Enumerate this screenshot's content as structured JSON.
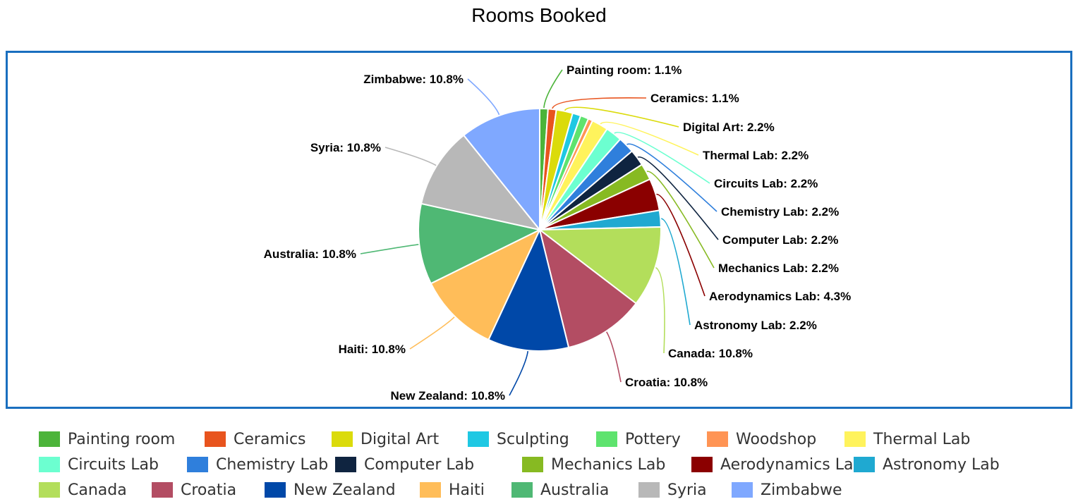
{
  "chart_data": {
    "type": "pie",
    "title": "Rooms Booked",
    "slices": [
      {
        "label": "Painting room",
        "pct": 1.1,
        "color": "#4cb43a",
        "display": "Painting room: 1.1%"
      },
      {
        "label": "Ceramics",
        "pct": 1.1,
        "color": "#e8541e",
        "display": "Ceramics: 1.1%"
      },
      {
        "label": "Digital Art",
        "pct": 2.2,
        "color": "#dbdb0b",
        "display": "Digital Art: 2.2%"
      },
      {
        "label": "Sculpting",
        "pct": 1.1,
        "color": "#1fc8e3",
        "display": ""
      },
      {
        "label": "Pottery",
        "pct": 1.1,
        "color": "#5ee36e",
        "display": ""
      },
      {
        "label": "Woodshop",
        "pct": 0.6,
        "color": "#ff9454",
        "display": ""
      },
      {
        "label": "Thermal Lab",
        "pct": 2.2,
        "color": "#fff35c",
        "display": "Thermal Lab: 2.2%"
      },
      {
        "label": "Circuits Lab",
        "pct": 2.2,
        "color": "#6cffd0",
        "display": "Circuits Lab: 2.2%"
      },
      {
        "label": "Chemistry Lab",
        "pct": 2.2,
        "color": "#2f7fdc",
        "display": "Chemistry Lab: 2.2%"
      },
      {
        "label": "Computer Lab",
        "pct": 2.2,
        "color": "#0f2440",
        "display": "Computer Lab: 2.2%"
      },
      {
        "label": "Mechanics Lab",
        "pct": 2.2,
        "color": "#87ba22",
        "display": "Mechanics Lab: 2.2%"
      },
      {
        "label": "Aerodynamics Lab",
        "pct": 4.3,
        "color": "#8b0000",
        "display": "Aerodynamics Lab: 4.3%"
      },
      {
        "label": "Astronomy Lab",
        "pct": 2.2,
        "color": "#1fa9d1",
        "display": "Astronomy Lab: 2.2%"
      },
      {
        "label": "Canada",
        "pct": 10.8,
        "color": "#b3de5b",
        "display": "Canada: 10.8%"
      },
      {
        "label": "Croatia",
        "pct": 10.8,
        "color": "#b34d63",
        "display": "Croatia: 10.8%"
      },
      {
        "label": "New Zealand",
        "pct": 10.8,
        "color": "#0048a8",
        "display": "New Zealand: 10.8%"
      },
      {
        "label": "Haiti",
        "pct": 10.8,
        "color": "#ffbd59",
        "display": "Haiti: 10.8%"
      },
      {
        "label": "Australia",
        "pct": 10.8,
        "color": "#4fb874",
        "display": "Australia: 10.8%"
      },
      {
        "label": "Syria",
        "pct": 10.8,
        "color": "#b8b8b8",
        "display": "Syria: 10.8%"
      },
      {
        "label": "Zimbabwe",
        "pct": 10.8,
        "color": "#7fa8ff",
        "display": "Zimbabwe: 10.8%"
      }
    ],
    "legend_position": "bottom",
    "frame_color": "#1a6fbf"
  }
}
